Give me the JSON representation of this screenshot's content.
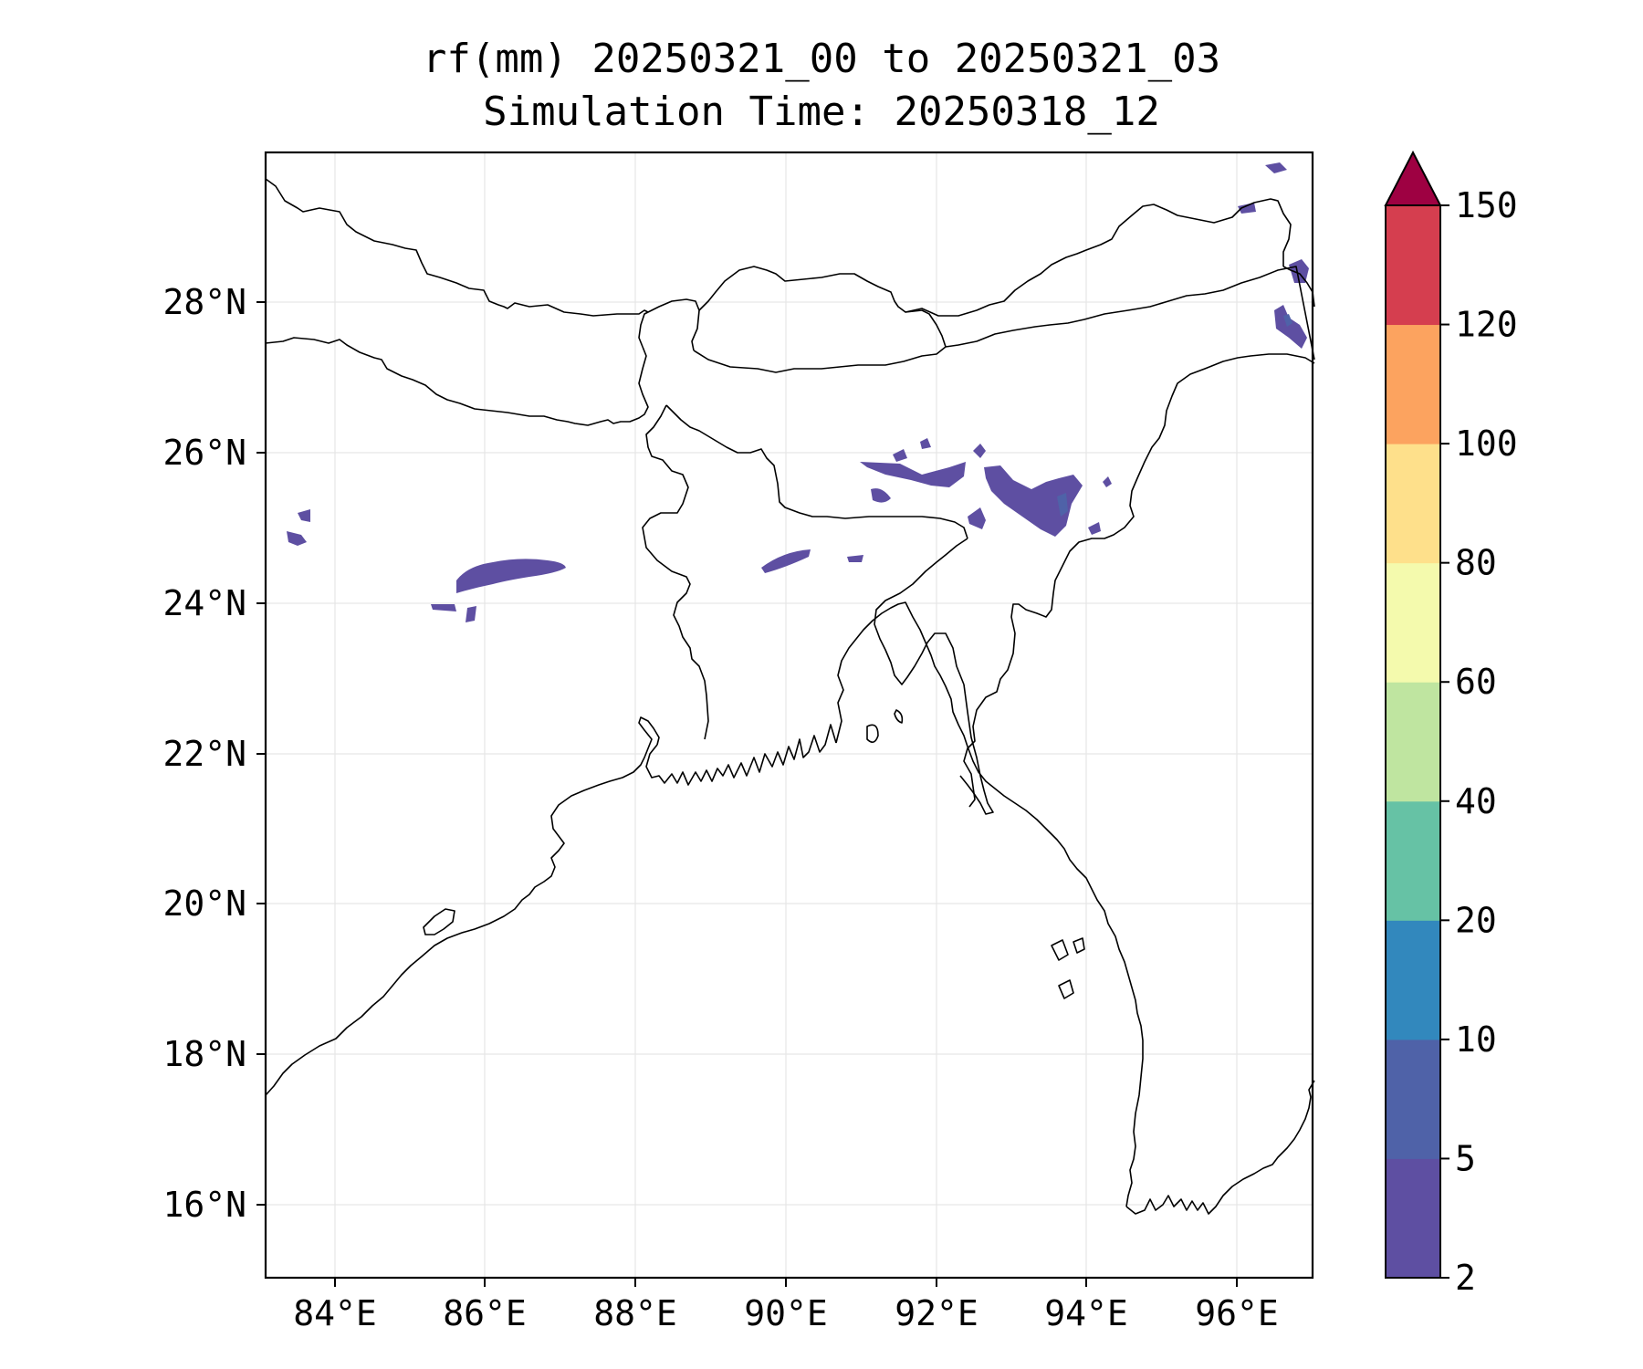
{
  "title": {
    "line1": "rf(mm) 20250321_00 to 20250321_03",
    "line2": "Simulation Time: 20250318_12"
  },
  "map": {
    "lon_range": [
      83.1,
      97.0
    ],
    "lat_range": [
      15.0,
      29.9
    ],
    "x_ticks": [
      "84°E",
      "86°E",
      "88°E",
      "90°E",
      "92°E",
      "94°E",
      "96°E"
    ],
    "y_ticks": [
      "16°N",
      "18°N",
      "20°N",
      "22°N",
      "24°N",
      "26°N",
      "28°N"
    ],
    "grid": true,
    "coastline_color": "#000000",
    "rain_color": "#5e4fa2"
  },
  "colorbar": {
    "levels": [
      "2",
      "5",
      "10",
      "20",
      "40",
      "60",
      "80",
      "100",
      "120",
      "150"
    ],
    "colors": [
      "#5e4fa2",
      "#4f62a8",
      "#3288bd",
      "#66c2a5",
      "#bfe5a0",
      "#f4faad",
      "#fee08b",
      "#fca35f",
      "#d53e4f"
    ],
    "extend_color": "#9e0142",
    "extend": "max"
  }
}
